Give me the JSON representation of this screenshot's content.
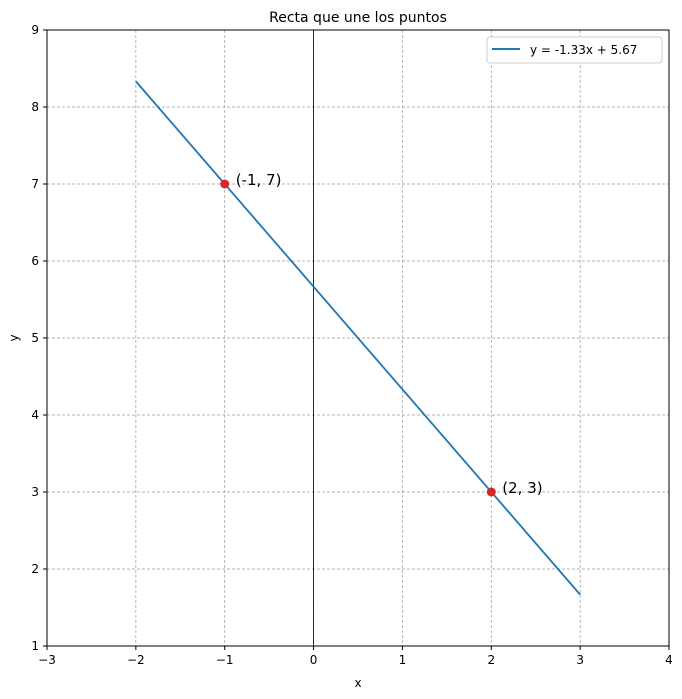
{
  "chart_data": {
    "type": "line",
    "title": "Recta que une los puntos",
    "xlabel": "x",
    "ylabel": "y",
    "xlim": [
      -3,
      4
    ],
    "ylim": [
      1,
      9
    ],
    "xticks": [
      "−3",
      "−2",
      "−1",
      "0",
      "1",
      "2",
      "3",
      "4"
    ],
    "yticks": [
      "1",
      "2",
      "3",
      "4",
      "5",
      "6",
      "7",
      "8",
      "9"
    ],
    "grid": true,
    "legend_position": "top-right",
    "series": [
      {
        "name": "y = -1.33x + 5.67",
        "color": "#1f77b4",
        "x": [
          -2,
          3
        ],
        "y": [
          8.333,
          1.667
        ]
      }
    ],
    "points": [
      {
        "x": -1,
        "y": 7,
        "label": "(-1, 7)",
        "color": "#d62728"
      },
      {
        "x": 2,
        "y": 3,
        "label": "(2, 3)",
        "color": "#d62728"
      }
    ]
  }
}
